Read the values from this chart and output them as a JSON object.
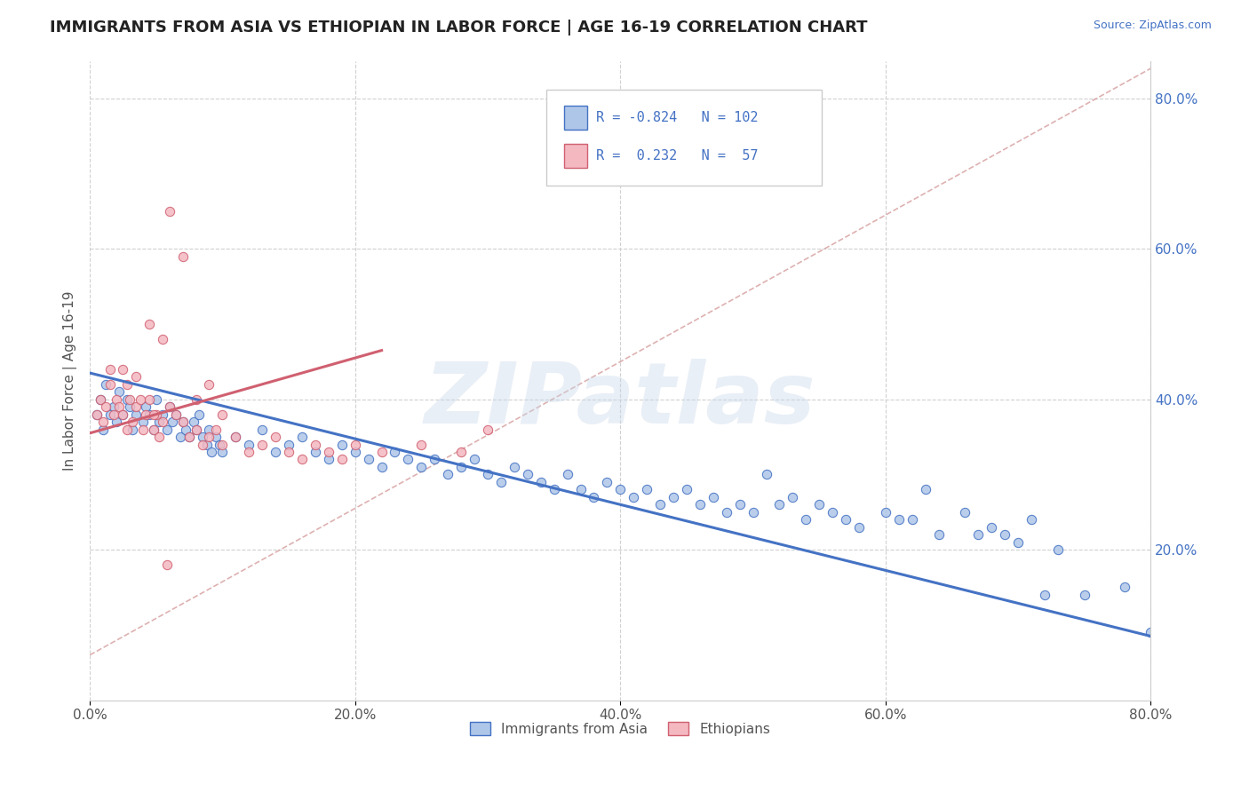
{
  "title": "IMMIGRANTS FROM ASIA VS ETHIOPIAN IN LABOR FORCE | AGE 16-19 CORRELATION CHART",
  "source_text": "Source: ZipAtlas.com",
  "ylabel": "In Labor Force | Age 16-19",
  "xlim": [
    0.0,
    0.8
  ],
  "ylim": [
    0.0,
    0.85
  ],
  "xtick_labels": [
    "0.0%",
    "20.0%",
    "40.0%",
    "60.0%",
    "80.0%"
  ],
  "xtick_vals": [
    0.0,
    0.2,
    0.4,
    0.6,
    0.8
  ],
  "ytick_labels_right": [
    "20.0%",
    "40.0%",
    "60.0%",
    "80.0%"
  ],
  "ytick_vals_right": [
    0.2,
    0.4,
    0.6,
    0.8
  ],
  "legend_R1": "-0.824",
  "legend_N1": "102",
  "legend_R2": "0.232",
  "legend_N2": "57",
  "color_asia_fill": "#aec6e8",
  "color_asia_edge": "#4472c4",
  "color_eth_fill": "#f4b8c1",
  "color_eth_edge": "#d06070",
  "color_asia_line": "#4472c4",
  "color_eth_line": "#d06070",
  "color_dashed": "#d09090",
  "watermark": "ZIPatlas",
  "background_color": "#ffffff",
  "grid_color": "#d0d0d0",
  "asia_scatter_x": [
    0.005,
    0.008,
    0.01,
    0.012,
    0.015,
    0.018,
    0.02,
    0.022,
    0.025,
    0.028,
    0.03,
    0.032,
    0.035,
    0.04,
    0.042,
    0.045,
    0.048,
    0.05,
    0.052,
    0.055,
    0.058,
    0.06,
    0.062,
    0.065,
    0.068,
    0.07,
    0.072,
    0.075,
    0.078,
    0.08,
    0.082,
    0.085,
    0.088,
    0.09,
    0.092,
    0.095,
    0.098,
    0.1,
    0.11,
    0.12,
    0.13,
    0.14,
    0.15,
    0.16,
    0.17,
    0.18,
    0.19,
    0.2,
    0.21,
    0.22,
    0.23,
    0.24,
    0.25,
    0.26,
    0.27,
    0.28,
    0.29,
    0.3,
    0.31,
    0.32,
    0.33,
    0.34,
    0.35,
    0.36,
    0.37,
    0.38,
    0.39,
    0.4,
    0.41,
    0.42,
    0.43,
    0.44,
    0.45,
    0.46,
    0.47,
    0.48,
    0.49,
    0.5,
    0.52,
    0.54,
    0.56,
    0.58,
    0.6,
    0.62,
    0.64,
    0.68,
    0.7,
    0.72,
    0.75,
    0.78,
    0.8,
    0.55,
    0.57,
    0.53,
    0.51,
    0.61,
    0.63,
    0.66,
    0.67,
    0.69,
    0.71,
    0.73
  ],
  "asia_scatter_y": [
    0.38,
    0.4,
    0.36,
    0.42,
    0.38,
    0.39,
    0.37,
    0.41,
    0.38,
    0.4,
    0.39,
    0.36,
    0.38,
    0.37,
    0.39,
    0.38,
    0.36,
    0.4,
    0.37,
    0.38,
    0.36,
    0.39,
    0.37,
    0.38,
    0.35,
    0.37,
    0.36,
    0.35,
    0.37,
    0.36,
    0.38,
    0.35,
    0.34,
    0.36,
    0.33,
    0.35,
    0.34,
    0.33,
    0.35,
    0.34,
    0.36,
    0.33,
    0.34,
    0.35,
    0.33,
    0.32,
    0.34,
    0.33,
    0.32,
    0.31,
    0.33,
    0.32,
    0.31,
    0.32,
    0.3,
    0.31,
    0.32,
    0.3,
    0.29,
    0.31,
    0.3,
    0.29,
    0.28,
    0.3,
    0.28,
    0.27,
    0.29,
    0.28,
    0.27,
    0.28,
    0.26,
    0.27,
    0.28,
    0.26,
    0.27,
    0.25,
    0.26,
    0.25,
    0.26,
    0.24,
    0.25,
    0.23,
    0.25,
    0.24,
    0.22,
    0.23,
    0.21,
    0.14,
    0.14,
    0.15,
    0.09,
    0.26,
    0.24,
    0.27,
    0.3,
    0.24,
    0.28,
    0.25,
    0.22,
    0.22,
    0.24,
    0.2
  ],
  "ethiopian_scatter_x": [
    0.005,
    0.008,
    0.01,
    0.012,
    0.015,
    0.018,
    0.02,
    0.022,
    0.025,
    0.028,
    0.03,
    0.032,
    0.035,
    0.04,
    0.042,
    0.045,
    0.048,
    0.05,
    0.052,
    0.055,
    0.06,
    0.065,
    0.07,
    0.075,
    0.08,
    0.085,
    0.09,
    0.095,
    0.1,
    0.11,
    0.12,
    0.13,
    0.14,
    0.15,
    0.16,
    0.17,
    0.18,
    0.19,
    0.2,
    0.22,
    0.25,
    0.28,
    0.3,
    0.1,
    0.08,
    0.09,
    0.06,
    0.07,
    0.045,
    0.055,
    0.025,
    0.035,
    0.015,
    0.028,
    0.038,
    0.048,
    0.058
  ],
  "ethiopian_scatter_y": [
    0.38,
    0.4,
    0.37,
    0.39,
    0.42,
    0.38,
    0.4,
    0.39,
    0.38,
    0.36,
    0.4,
    0.37,
    0.39,
    0.36,
    0.38,
    0.4,
    0.36,
    0.38,
    0.35,
    0.37,
    0.39,
    0.38,
    0.37,
    0.35,
    0.36,
    0.34,
    0.35,
    0.36,
    0.34,
    0.35,
    0.33,
    0.34,
    0.35,
    0.33,
    0.32,
    0.34,
    0.33,
    0.32,
    0.34,
    0.33,
    0.34,
    0.33,
    0.36,
    0.38,
    0.4,
    0.42,
    0.65,
    0.59,
    0.5,
    0.48,
    0.44,
    0.43,
    0.44,
    0.42,
    0.4,
    0.38,
    0.18
  ],
  "asia_line_x": [
    0.0,
    0.8
  ],
  "asia_line_y": [
    0.435,
    0.085
  ],
  "ethiopian_line_x": [
    0.0,
    0.22
  ],
  "ethiopian_line_y": [
    0.355,
    0.465
  ],
  "dashed_line_x": [
    0.0,
    0.8
  ],
  "dashed_line_y": [
    0.06,
    0.84
  ]
}
